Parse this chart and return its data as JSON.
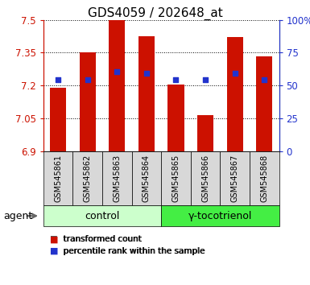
{
  "title": "GDS4059 / 202648_at",
  "categories": [
    "GSM545861",
    "GSM545862",
    "GSM545863",
    "GSM545864",
    "GSM545865",
    "GSM545866",
    "GSM545867",
    "GSM545868"
  ],
  "bar_values": [
    7.19,
    7.35,
    7.5,
    7.425,
    7.205,
    7.065,
    7.42,
    7.335
  ],
  "blue_values": [
    7.225,
    7.225,
    7.265,
    7.255,
    7.225,
    7.225,
    7.255,
    7.225
  ],
  "bar_bottom": 6.9,
  "ylim": [
    6.9,
    7.5
  ],
  "y_ticks_left": [
    6.9,
    7.05,
    7.2,
    7.35,
    7.5
  ],
  "y_ticks_right": [
    0,
    25,
    50,
    75,
    100
  ],
  "y_right_labels": [
    "0",
    "25",
    "50",
    "75",
    "100%"
  ],
  "bar_color": "#cc1100",
  "blue_color": "#2233cc",
  "control_color": "#ccffcc",
  "treatment_color": "#44ee44",
  "label_bg_color": "#d8d8d8",
  "group_labels": [
    "control",
    "γ-tocotrienol"
  ],
  "agent_label": "agent",
  "legend_items": [
    "transformed count",
    "percentile rank within the sample"
  ],
  "bar_width": 0.55,
  "x_label_fontsize": 7.0,
  "title_fontsize": 11,
  "tick_fontsize": 8.5
}
